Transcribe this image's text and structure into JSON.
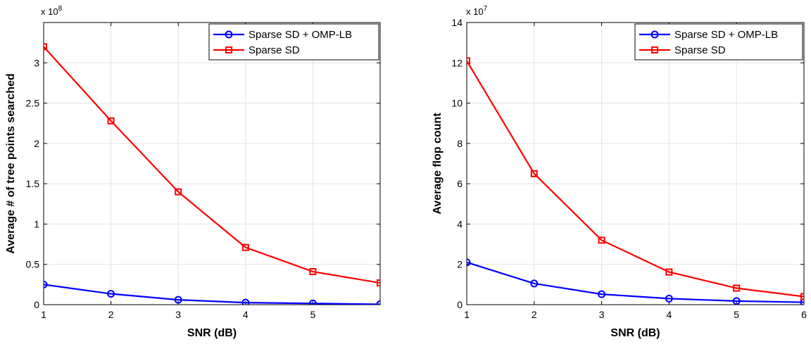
{
  "chart_data": [
    {
      "type": "line",
      "title": "",
      "xlabel": "SNR (dB)",
      "ylabel": "Average # of tree points searched",
      "y_multiplier": {
        "base": "x 10",
        "exp": "8"
      },
      "xlim": [
        1,
        6
      ],
      "ylim": [
        0,
        3.5
      ],
      "xticks": [
        1,
        2,
        3,
        4,
        5
      ],
      "xtick_labels": [
        "1",
        "2",
        "3",
        "4",
        "5"
      ],
      "yticks": [
        0,
        0.5,
        1,
        1.5,
        2,
        2.5,
        3
      ],
      "ytick_labels": [
        "0",
        "0.5",
        "1",
        "1.5",
        "2",
        "2.5",
        "3"
      ],
      "grid": true,
      "legend_position": "top-right",
      "x": [
        1,
        2,
        3,
        4,
        5,
        6
      ],
      "series": [
        {
          "name": "Sparse SD + OMP-LB",
          "color": "#0000ff",
          "marker": "circle",
          "values": [
            0.25,
            0.135,
            0.06,
            0.025,
            0.015,
            0.005
          ]
        },
        {
          "name": "Sparse SD",
          "color": "#ff0000",
          "marker": "square",
          "values": [
            3.2,
            2.28,
            1.4,
            0.71,
            0.41,
            0.27
          ]
        }
      ]
    },
    {
      "type": "line",
      "title": "",
      "xlabel": "SNR (dB)",
      "ylabel": "Average flop count",
      "y_multiplier": {
        "base": "x 10",
        "exp": "7"
      },
      "xlim": [
        1,
        6
      ],
      "ylim": [
        0,
        14
      ],
      "xticks": [
        1,
        2,
        3,
        4,
        5,
        6
      ],
      "xtick_labels": [
        "1",
        "2",
        "3",
        "4",
        "5",
        "6"
      ],
      "yticks": [
        0,
        2,
        4,
        6,
        8,
        10,
        12,
        14
      ],
      "ytick_labels": [
        "0",
        "2",
        "4",
        "6",
        "8",
        "10",
        "12",
        "14"
      ],
      "grid": true,
      "legend_position": "top-right",
      "x": [
        1,
        2,
        3,
        4,
        5,
        6
      ],
      "series": [
        {
          "name": "Sparse SD + OMP-LB",
          "color": "#0000ff",
          "marker": "circle",
          "values": [
            2.1,
            1.05,
            0.52,
            0.3,
            0.18,
            0.12
          ]
        },
        {
          "name": "Sparse SD",
          "color": "#ff0000",
          "marker": "square",
          "values": [
            12.1,
            6.5,
            3.2,
            1.62,
            0.82,
            0.4
          ]
        }
      ]
    }
  ]
}
